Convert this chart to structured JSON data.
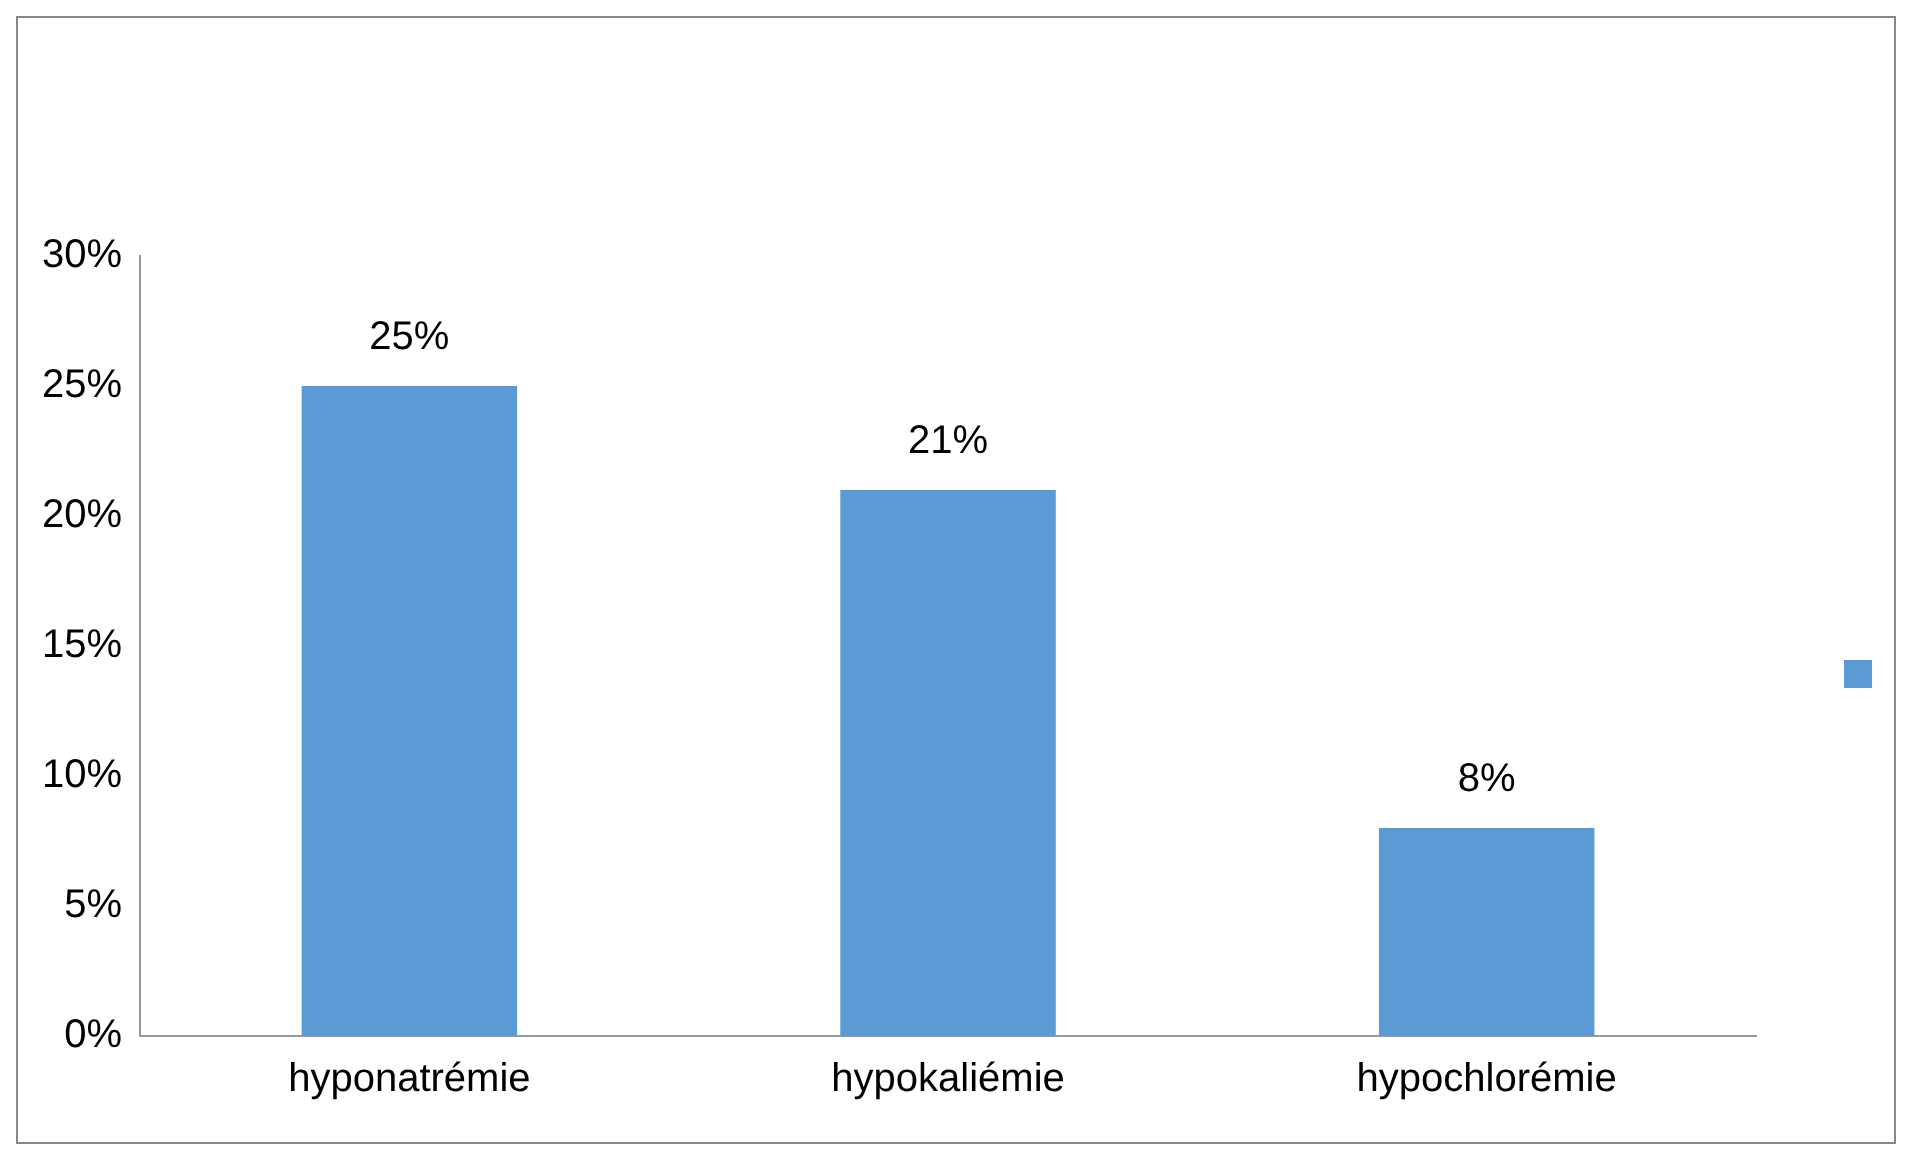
{
  "chart_data": {
    "type": "bar",
    "categories": [
      "hyponatrémie",
      "hypokaliémie",
      "hypochlorémie"
    ],
    "series": [
      {
        "color": "#5b9bd5",
        "values": [
          25,
          21,
          8
        ],
        "value_labels": [
          "25%",
          "21%",
          "8%"
        ]
      }
    ],
    "ylim": [
      0,
      30
    ],
    "yticks": [
      {
        "value": 0,
        "label": "0%"
      },
      {
        "value": 5,
        "label": "5%"
      },
      {
        "value": 10,
        "label": "10%"
      },
      {
        "value": 15,
        "label": "15%"
      },
      {
        "value": 20,
        "label": "20%"
      },
      {
        "value": 25,
        "label": "25%"
      },
      {
        "value": 30,
        "label": "30%"
      }
    ],
    "grid": false
  }
}
